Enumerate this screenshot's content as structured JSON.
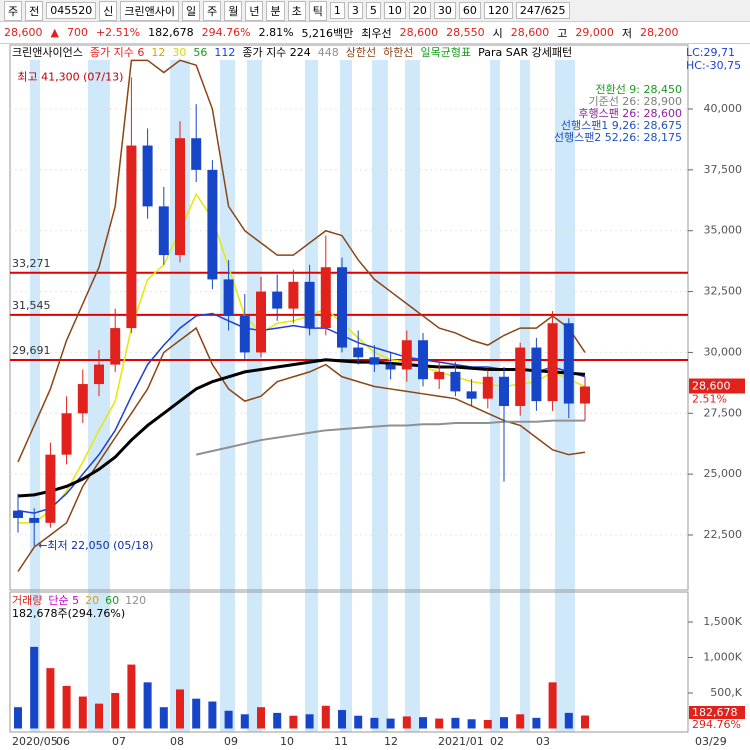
{
  "toolbar": {
    "items": [
      "주",
      "전",
      "045520",
      "신",
      "크린앤사이",
      "일",
      "주",
      "월",
      "년",
      "분",
      "초",
      "틱",
      "1",
      "3",
      "5",
      "10",
      "20",
      "30",
      "60",
      "120",
      "247/625"
    ]
  },
  "quote": {
    "items": [
      {
        "text": "28,600",
        "color": "#e0211c"
      },
      {
        "text": "▲",
        "color": "#e0211c"
      },
      {
        "text": "700",
        "color": "#e0211c"
      },
      {
        "text": "+2.51%",
        "color": "#e0211c"
      },
      {
        "text": "182,678",
        "color": "#000000"
      },
      {
        "text": "294.76%",
        "color": "#e0211c"
      },
      {
        "text": "2.81%",
        "color": "#000000"
      },
      {
        "text": "5,216백만",
        "color": "#000000"
      },
      {
        "text": "최우선",
        "color": "#000000"
      },
      {
        "text": "28,600",
        "color": "#e0211c"
      },
      {
        "text": "28,550",
        "color": "#e0211c"
      },
      {
        "text": "시",
        "color": "#000000"
      },
      {
        "text": "28,600",
        "color": "#e0211c"
      },
      {
        "text": "고",
        "color": "#000000"
      },
      {
        "text": "29,000",
        "color": "#e0211c"
      },
      {
        "text": "저",
        "color": "#000000"
      },
      {
        "text": "28,200",
        "color": "#e0211c"
      }
    ]
  },
  "x_axis": [
    "2020/05",
    "06",
    "07",
    "08",
    "09",
    "10",
    "11",
    "12",
    "2021/01",
    "02",
    "03",
    "03/29"
  ],
  "chart_data": [
    {
      "type": "candlestick",
      "legend": [
        {
          "text": "크린앤사이언스",
          "color": "#000000"
        },
        {
          "text": "종가 지수 6",
          "color": "#e0211c"
        },
        {
          "text": "12",
          "color": "#e0a000"
        },
        {
          "text": "30",
          "color": "#d8d800"
        },
        {
          "text": "56",
          "color": "#1a9a1a"
        },
        {
          "text": "112",
          "color": "#2040d0"
        },
        {
          "text": "종가 지수 224",
          "color": "#000000"
        },
        {
          "text": "448",
          "color": "#909090"
        },
        {
          "text": "상한선",
          "color": "#8b4513"
        },
        {
          "text": "하한선",
          "color": "#8b4513"
        },
        {
          "text": "일목균형표",
          "color": "#1a9a1a"
        },
        {
          "text": "Para SAR 강세패턴",
          "color": "#000000"
        }
      ],
      "lc": "LC:29,71",
      "hc": "HC:-30,75",
      "open": [
        23500,
        23200,
        23000,
        25800,
        27500,
        28700,
        29500,
        31000,
        38500,
        36000,
        34000,
        38800,
        37500,
        33000,
        31500,
        30000,
        32500,
        31800,
        32900,
        31000,
        33500,
        30200,
        29800,
        29500,
        29300,
        30500,
        28900,
        29200,
        28400,
        28100,
        29000,
        27800,
        30200,
        28000,
        31200,
        27900
      ],
      "high": [
        24200,
        23600,
        26300,
        28200,
        29300,
        30100,
        31800,
        41300,
        39200,
        36800,
        39500,
        40200,
        37900,
        33800,
        32400,
        33100,
        33200,
        33400,
        33600,
        34800,
        33900,
        30900,
        30300,
        30000,
        30900,
        30800,
        29600,
        29600,
        28900,
        29300,
        29400,
        30400,
        30600,
        31700,
        31400,
        29000
      ],
      "low": [
        22600,
        22050,
        22800,
        25400,
        27100,
        28200,
        29200,
        30800,
        35500,
        33600,
        33700,
        37000,
        32600,
        30900,
        29700,
        29800,
        31300,
        31200,
        30700,
        30700,
        30000,
        29500,
        29200,
        28900,
        28800,
        28600,
        28500,
        28200,
        27800,
        27700,
        24700,
        27400,
        27600,
        27600,
        27300,
        27200
      ],
      "close": [
        23200,
        23000,
        25800,
        27500,
        28700,
        29500,
        31000,
        38500,
        36000,
        34000,
        38800,
        37500,
        33000,
        31500,
        30000,
        32500,
        31800,
        32900,
        31000,
        33500,
        30200,
        29800,
        29500,
        29300,
        30500,
        28900,
        29200,
        28400,
        28100,
        29000,
        27800,
        30200,
        28000,
        31200,
        27900,
        28600
      ],
      "colors": {
        "up": "#e0211c",
        "down": "#1645c8"
      },
      "series": [
        {
          "color": "#8b4513",
          "width": 1.5,
          "values": [
            25500,
            27000,
            28500,
            30500,
            32000,
            33500,
            36000,
            42000,
            42000,
            41500,
            42000,
            41800,
            40000,
            36000,
            35000,
            34500,
            34000,
            34000,
            34500,
            35000,
            34800,
            33800,
            33000,
            32500,
            32000,
            31500,
            31000,
            30800,
            30500,
            30300,
            30700,
            31000,
            31000,
            31500,
            31000,
            30000
          ]
        },
        {
          "color": "#8b4513",
          "width": 1.5,
          "values": [
            21000,
            22000,
            22500,
            23000,
            24500,
            25500,
            26500,
            27500,
            28500,
            30000,
            30500,
            31000,
            29500,
            28500,
            28000,
            28200,
            28800,
            29000,
            29200,
            29500,
            29000,
            28800,
            28600,
            28500,
            28400,
            28300,
            28200,
            28100,
            27800,
            27500,
            27200,
            27000,
            26500,
            26000,
            25800,
            25900
          ]
        },
        {
          "color": "#909090",
          "width": 2,
          "values": [
            null,
            null,
            null,
            null,
            null,
            null,
            null,
            null,
            null,
            null,
            null,
            25800,
            25950,
            26100,
            26250,
            26400,
            26500,
            26600,
            26700,
            26800,
            26850,
            26900,
            26950,
            27000,
            27000,
            27050,
            27050,
            27100,
            27100,
            27100,
            27150,
            27150,
            27150,
            27200,
            27200,
            27200
          ]
        },
        {
          "color": "#e8e800",
          "width": 1.5,
          "values": [
            23000,
            23000,
            23500,
            24300,
            25500,
            26800,
            28000,
            31000,
            33000,
            33600,
            35000,
            36500,
            35500,
            33500,
            31500,
            30800,
            31200,
            31300,
            31500,
            31800,
            31200,
            30600,
            30000,
            29700,
            29600,
            29400,
            29200,
            29000,
            28800,
            28700,
            28600,
            28700,
            28800,
            29200,
            28900,
            28600
          ]
        },
        {
          "color": "#2040d0",
          "width": 1.5,
          "values": [
            23500,
            23400,
            23600,
            24200,
            25000,
            25800,
            26800,
            28200,
            29500,
            30300,
            31000,
            31500,
            31600,
            31300,
            31000,
            30900,
            31000,
            31100,
            31000,
            31000,
            30700,
            30400,
            30200,
            30000,
            29800,
            29700,
            29600,
            29500,
            29400,
            29400,
            29300,
            29300,
            29200,
            29400,
            29200,
            29000
          ]
        },
        {
          "color": "#000000",
          "width": 3,
          "values": [
            24100,
            24150,
            24300,
            24500,
            24800,
            25200,
            25700,
            26400,
            27000,
            27500,
            28000,
            28500,
            28800,
            29000,
            29200,
            29300,
            29400,
            29500,
            29600,
            29700,
            29650,
            29600,
            29600,
            29550,
            29500,
            29450,
            29400,
            29400,
            29350,
            29300,
            29300,
            29300,
            29250,
            29200,
            29150,
            29100
          ]
        }
      ],
      "hlines": [
        {
          "value": 33271,
          "label": "33,271"
        },
        {
          "value": 31545,
          "label": "31,545"
        },
        {
          "value": 29691,
          "label": "29,691"
        }
      ],
      "hline_color": "#e00000",
      "max_note": "최고 41,300 (07/13)",
      "min_note": "←최저 22,050 (05/18)",
      "ichimoku": [
        {
          "text": "전환선 9: 28,450",
          "color": "#1a9a1a"
        },
        {
          "text": "기준선 26: 28,900",
          "color": "#808080"
        },
        {
          "text": "후행스팬 26: 28,600",
          "color": "#9020a0"
        },
        {
          "text": "선행스팬1 9,26: 28,675",
          "color": "#2050c0"
        },
        {
          "text": "선행스팬2 52,26: 28,175",
          "color": "#2050c0"
        }
      ],
      "last_price": {
        "value": 28600,
        "label": "28,600"
      },
      "last_change": "2.51%",
      "ylim": [
        20240,
        42630
      ],
      "yticks": [
        {
          "value": 22500,
          "label": "22,500"
        },
        {
          "value": 25000,
          "label": "25,000"
        },
        {
          "value": 27500,
          "label": "27,500"
        },
        {
          "value": 30000,
          "label": "30,000"
        },
        {
          "value": 32500,
          "label": "32,500"
        },
        {
          "value": 35000,
          "label": "35,000"
        },
        {
          "value": 37500,
          "label": "37,500"
        },
        {
          "value": 40000,
          "label": "40,000"
        }
      ]
    },
    {
      "type": "bar",
      "legend": [
        {
          "text": "거래량",
          "color": "#e0211c"
        },
        {
          "text": "단순 5",
          "color": "#d000d0"
        },
        {
          "text": "20",
          "color": "#e0a000"
        },
        {
          "text": "60",
          "color": "#1a9a1a"
        },
        {
          "text": "120",
          "color": "#909090"
        }
      ],
      "summary": "182,678주(294.76%)",
      "values": [
        300,
        1150,
        850,
        600,
        450,
        350,
        500,
        900,
        650,
        300,
        550,
        420,
        380,
        250,
        200,
        300,
        220,
        180,
        200,
        320,
        260,
        180,
        150,
        140,
        170,
        160,
        140,
        150,
        130,
        120,
        160,
        200,
        150,
        650,
        220,
        182.678
      ],
      "last_labels": [
        "182,678",
        "294.76%"
      ],
      "ylim": [
        0,
        1880
      ],
      "yticks": [
        {
          "value": 500,
          "label": "500,K"
        },
        {
          "value": 1000,
          "label": "1,000K"
        },
        {
          "value": 1500,
          "label": "1,500K"
        }
      ]
    }
  ]
}
